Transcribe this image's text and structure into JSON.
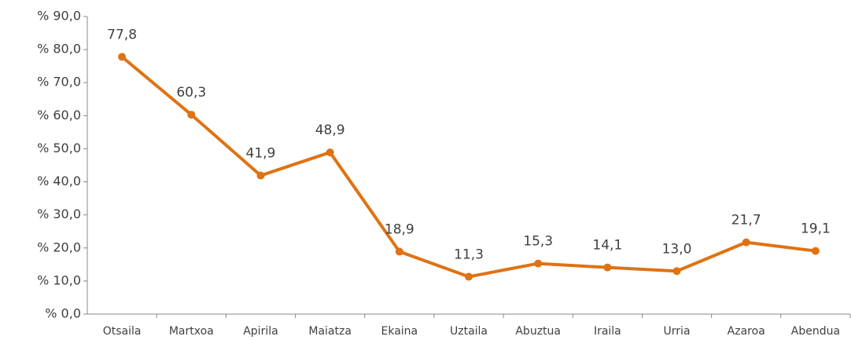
{
  "chart_data": {
    "type": "line",
    "categories": [
      "Otsaila",
      "Martxoa",
      "Apirila",
      "Maiatza",
      "Ekaina",
      "Uztaila",
      "Abuztua",
      "Iraila",
      "Urria",
      "Azaroa",
      "Abendua"
    ],
    "series": [
      {
        "color": "#e07213",
        "values": [
          77.8,
          60.3,
          41.9,
          48.9,
          18.9,
          11.3,
          15.3,
          14.1,
          13.0,
          21.7,
          19.1
        ],
        "value_labels": [
          "77,8",
          "60,3",
          "41,9",
          "48,9",
          "18,9",
          "11,3",
          "15,3",
          "14,1",
          "13,0",
          "21,7",
          "19,1"
        ]
      }
    ],
    "ylim": [
      0,
      90
    ],
    "yticks": [
      {
        "value": 0,
        "label": "% 0,0"
      },
      {
        "value": 10,
        "label": "% 10,0"
      },
      {
        "value": 20,
        "label": "% 20,0"
      },
      {
        "value": 30,
        "label": "% 30,0"
      },
      {
        "value": 40,
        "label": "% 40,0"
      },
      {
        "value": 50,
        "label": "% 50,0"
      },
      {
        "value": 60,
        "label": "% 60,0"
      },
      {
        "value": 70,
        "label": "% 70,0"
      },
      {
        "value": 80,
        "label": "% 80,0"
      },
      {
        "value": 90,
        "label": "% 90,0"
      }
    ]
  }
}
